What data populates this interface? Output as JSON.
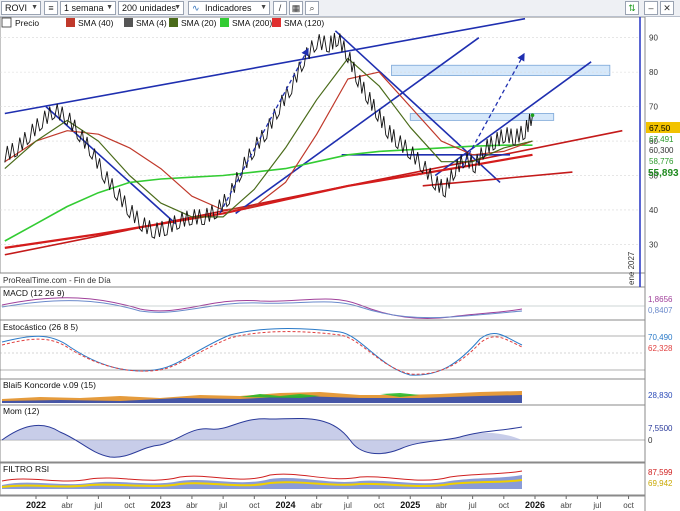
{
  "toolbar": {
    "symbol": "ROVI",
    "period": "1 semana",
    "units": "200 unidades",
    "indicators": "Indicadores"
  },
  "legend": [
    {
      "label": "Precio",
      "color": "#000000"
    },
    {
      "label": "SMA (40)",
      "color": "#c0392b"
    },
    {
      "label": "SMA (4)",
      "color": "#555555"
    },
    {
      "label": "SMA (20)",
      "color": "#4a6b1a"
    },
    {
      "label": "SMA (200)",
      "color": "#33cc33"
    },
    {
      "label": "SMA (120)",
      "color": "#e03030"
    }
  ],
  "watermark": "ProRealTime.com - Fin de Día",
  "date_stamp": "ene 2027",
  "price_labels": {
    "last": "67,50",
    "l2": "67,491",
    "l3": "60,300",
    "l4": "58,776",
    "l5": "55,893"
  },
  "panels": {
    "macd": {
      "title": "MACD (12 26 9)",
      "v1": "1,8656",
      "v2": "0,8407"
    },
    "stoch": {
      "title": "Estocástico (26 8 5)",
      "v1": "70,490",
      "v2": "62,328"
    },
    "koncorde": {
      "title": "Blai5 Koncorde v.09 (15)",
      "v1": "28,830"
    },
    "mom": {
      "title": "Mom (12)",
      "v1": "7,5500",
      "v2": "0"
    },
    "rsi": {
      "title": "FILTRO RSI",
      "v1": "87,599",
      "v2": "69,942"
    }
  },
  "chart_data": {
    "type": "line",
    "y_ticks": [
      30,
      40,
      50,
      60,
      70,
      80,
      90
    ],
    "ylim": [
      22,
      96
    ],
    "stoch_ticks": [
      20,
      50,
      80
    ],
    "x_ticks": [
      "2022",
      "abr",
      "jul",
      "oct",
      "2023",
      "abr",
      "jul",
      "oct",
      "2024",
      "abr",
      "jul",
      "oct",
      "2025",
      "abr",
      "jul",
      "oct",
      "2026",
      "abr",
      "jul",
      "oct"
    ],
    "price_series": {
      "name": "Precio",
      "x": [
        2021.75,
        2021.85,
        2021.95,
        2022.05,
        2022.15,
        2022.25,
        2022.35,
        2022.45,
        2022.55,
        2022.65,
        2022.75,
        2022.85,
        2022.95,
        2023.05,
        2023.15,
        2023.25,
        2023.35,
        2023.45,
        2023.55,
        2023.65,
        2023.75,
        2023.85,
        2023.95,
        2024.05,
        2024.15,
        2024.25,
        2024.35,
        2024.42,
        2024.5,
        2024.58,
        2024.66,
        2024.74,
        2024.82,
        2024.9,
        2025.0,
        2025.1,
        2025.2,
        2025.28,
        2025.36,
        2025.44,
        2025.52,
        2025.6,
        2025.68,
        2025.76,
        2025.84,
        2025.92,
        2025.98
      ],
      "values": [
        56,
        58,
        62,
        66,
        69,
        67,
        62,
        57,
        50,
        45,
        40,
        36,
        34,
        35,
        37,
        38,
        38,
        40,
        44,
        52,
        58,
        63,
        70,
        76,
        84,
        89,
        88,
        90,
        85,
        78,
        73,
        68,
        63,
        60,
        57,
        53,
        48,
        46,
        52,
        55,
        53,
        58,
        60,
        62,
        61,
        63,
        67.5
      ]
    },
    "sma40": {
      "name": "SMA (40)",
      "x": [
        2021.75,
        2022.0,
        2022.25,
        2022.5,
        2022.75,
        2023.0,
        2023.25,
        2023.5,
        2023.75,
        2024.0,
        2024.25,
        2024.5,
        2024.75,
        2025.0,
        2025.25,
        2025.5,
        2025.75,
        2025.98
      ],
      "values": [
        54,
        60,
        63,
        62,
        58,
        52,
        44,
        40,
        41,
        48,
        62,
        78,
        80,
        70,
        60,
        56,
        57,
        60
      ]
    },
    "sma20": {
      "name": "SMA (20)",
      "x": [
        2021.75,
        2022.0,
        2022.25,
        2022.5,
        2022.75,
        2023.0,
        2023.25,
        2023.5,
        2023.75,
        2024.0,
        2024.25,
        2024.5,
        2024.75,
        2025.0,
        2025.25,
        2025.5,
        2025.75,
        2025.98
      ],
      "values": [
        52,
        60,
        66,
        60,
        50,
        42,
        38,
        38,
        46,
        58,
        72,
        84,
        76,
        64,
        54,
        54,
        58,
        60
      ]
    },
    "sma200": {
      "name": "SMA (200)",
      "x": [
        2021.75,
        2022.0,
        2022.25,
        2022.5,
        2022.75,
        2023.0,
        2023.25,
        2023.5,
        2023.75,
        2024.0,
        2024.25,
        2024.5,
        2024.75,
        2025.0,
        2025.25,
        2025.5,
        2025.75,
        2025.98
      ],
      "values": [
        31,
        36,
        41,
        45,
        48,
        49,
        49.5,
        50,
        51,
        52,
        54,
        56,
        57,
        57.5,
        58,
        58.5,
        58.8,
        58.8
      ]
    },
    "sma120": {
      "name": "SMA (120)",
      "x": [
        2021.75,
        2022.5,
        2023.0,
        2023.5,
        2024.0,
        2024.5,
        2025.0,
        2025.5,
        2025.98
      ],
      "values": [
        29,
        33,
        36,
        39,
        43,
        47,
        50,
        53,
        56
      ]
    },
    "trendlines": [
      {
        "x": [
          2021.75,
          2025.92
        ],
        "values": [
          68,
          95.5
        ],
        "color": "#1f2fb0"
      },
      {
        "x": [
          2021.75,
          2026.7
        ],
        "values": [
          27,
          63
        ],
        "color": "#c41a1a"
      },
      {
        "x": [
          2022.08,
          2023.12
        ],
        "values": [
          70,
          36
        ],
        "color": "#1f2fb0"
      },
      {
        "x": [
          2024.4,
          2025.72
        ],
        "values": [
          92,
          48
        ],
        "color": "#1f2fb0"
      },
      {
        "x": [
          2023.6,
          2025.55
        ],
        "values": [
          39,
          90
        ],
        "color": "#1f2fb0"
      },
      {
        "x": [
          2025.2,
          2026.45
        ],
        "values": [
          50,
          83
        ],
        "color": "#1f2fb0"
      },
      {
        "x": [
          2024.45,
          2025.8
        ],
        "values": [
          56,
          56
        ],
        "color": "#1f2fb0"
      },
      {
        "x": [
          2025.1,
          2026.3
        ],
        "values": [
          47,
          51
        ],
        "color": "#c41a1a"
      }
    ],
    "zones": [
      {
        "x": [
          2024.85,
          2026.6
        ],
        "values": [
          79,
          82
        ]
      },
      {
        "x": [
          2025.0,
          2026.15
        ],
        "values": [
          66,
          68
        ]
      }
    ]
  }
}
